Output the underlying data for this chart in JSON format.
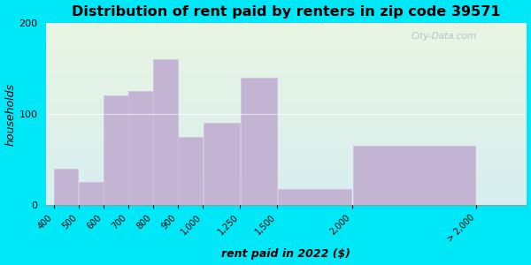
{
  "title": "Distribution of rent paid by renters in zip code 39571",
  "xlabel": "rent paid in 2022 ($)",
  "ylabel": "households",
  "tick_labels": [
    "400",
    "500",
    "600",
    "700",
    "800",
    "900",
    "1,000",
    "1,250",
    "1,500",
    "2,000",
    "> 2,000"
  ],
  "tick_positions": [
    0,
    1,
    2,
    3,
    4,
    5,
    6,
    7.5,
    9,
    12,
    17
  ],
  "bar_lefts": [
    0,
    1,
    2,
    3,
    4,
    5,
    6,
    7.5,
    9,
    12
  ],
  "bar_widths": [
    1,
    1,
    1,
    1,
    1,
    1,
    1.5,
    1.5,
    3,
    5
  ],
  "bar_values": [
    40,
    25,
    120,
    125,
    160,
    75,
    90,
    140,
    18,
    65
  ],
  "bar_color": "#c4b4d4",
  "bar_edge_color": "#d0c0dc",
  "background_plot_top": "#e8f5e2",
  "background_plot_bottom": "#d8eef0",
  "background_fig": "#00e8f8",
  "ylim": [
    0,
    200
  ],
  "yticks": [
    0,
    100,
    200
  ],
  "watermark": "City-Data.com",
  "title_fontsize": 11.5,
  "label_fontsize": 9
}
